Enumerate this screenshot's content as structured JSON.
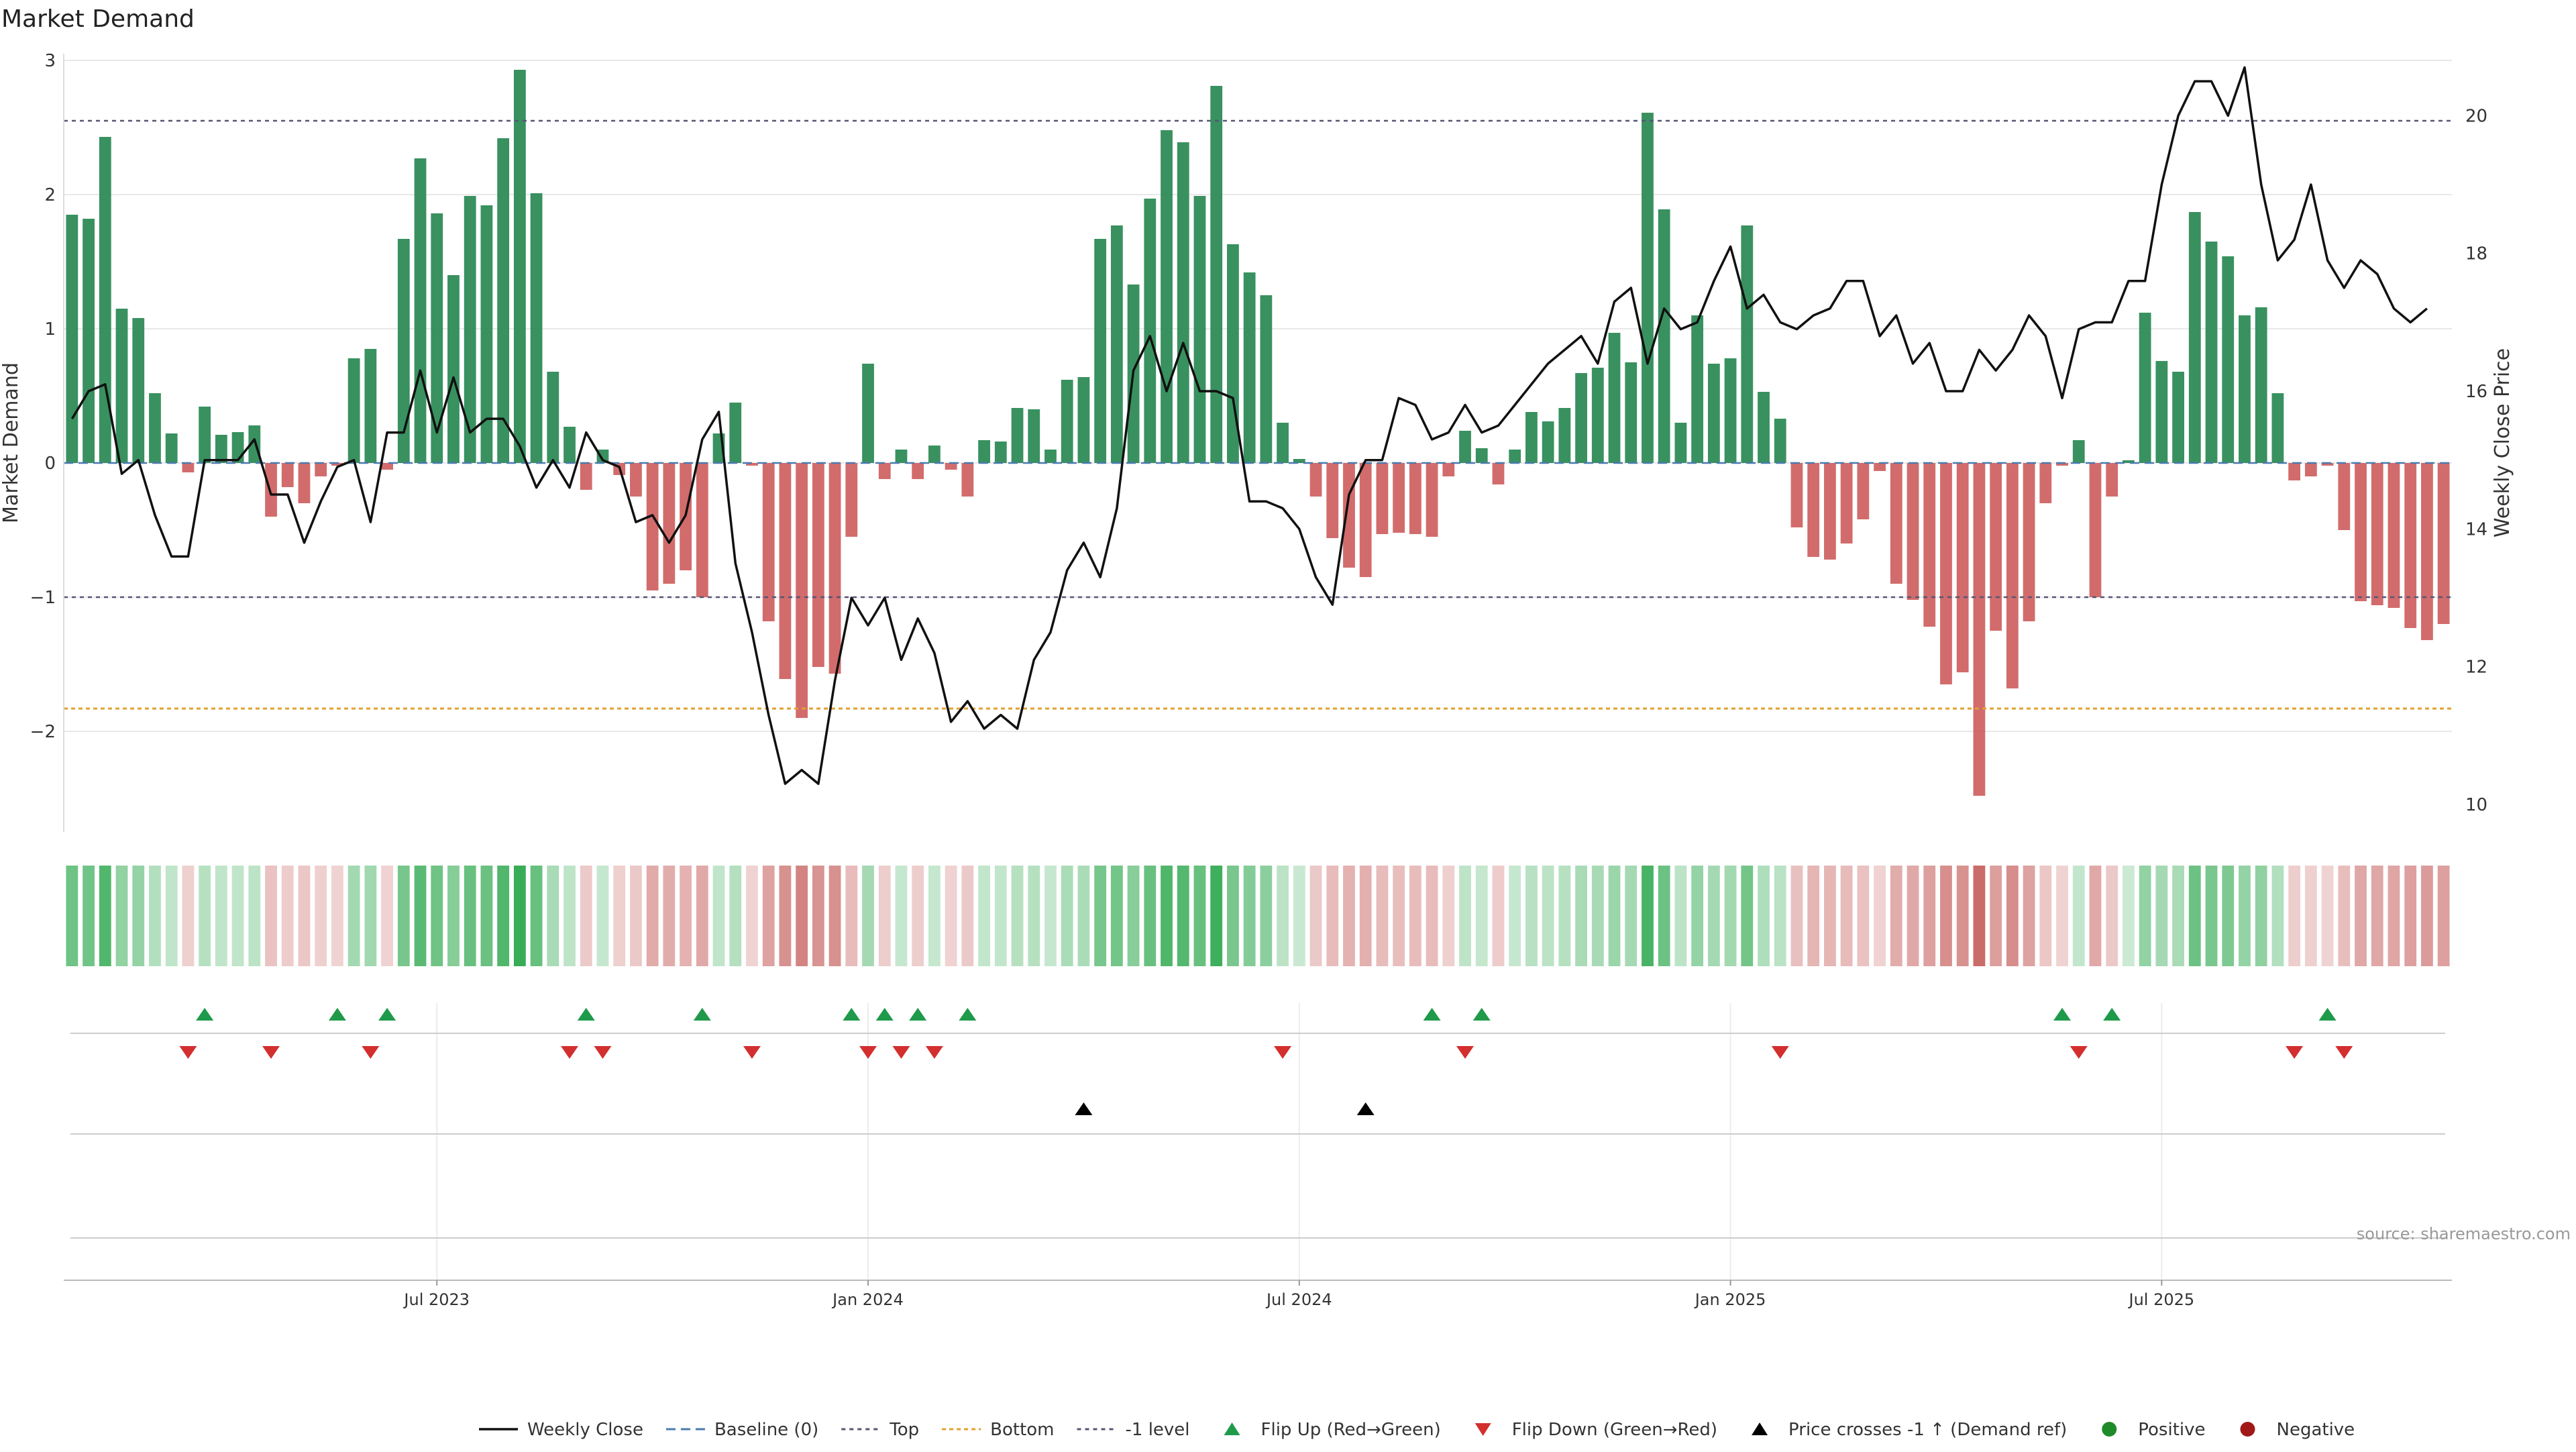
{
  "title": "Market Demand",
  "source": "source: sharemaestro.com",
  "colors": {
    "positive": "#2e8b57",
    "negative": "#cd5c5c",
    "line": "#111111",
    "ref": "#555577",
    "bottom": "#e0a030",
    "flip_up": "#1f9a4a",
    "flip_down": "#d32f2f",
    "cross": "#000000",
    "grid": "#e8e8e8"
  },
  "chart_data": {
    "type": "bar",
    "title": "Market Demand",
    "ylabel": "Market Demand",
    "y2label": "Weekly Close Price",
    "ylim": [
      -2.75,
      3.05
    ],
    "y2lim": [
      9.6,
      20.9
    ],
    "yticks": [
      {
        "value": -2,
        "label": "−2"
      },
      {
        "value": -1,
        "label": "−1"
      },
      {
        "value": 0,
        "label": "0"
      },
      {
        "value": 1,
        "label": "1"
      },
      {
        "value": 2,
        "label": "2"
      },
      {
        "value": 3,
        "label": "3"
      }
    ],
    "y2ticks": [
      10,
      12,
      14,
      16,
      18,
      20
    ],
    "xticks": [
      {
        "index": 22,
        "label": "Jul 2023"
      },
      {
        "index": 48,
        "label": "Jan 2024"
      },
      {
        "index": 74,
        "label": "Jul 2024"
      },
      {
        "index": 100,
        "label": "Jan 2025"
      },
      {
        "index": 126,
        "label": "Jul 2025"
      }
    ],
    "levels": {
      "top": 2.55,
      "bottom": -1.83,
      "minus_one": -1.0,
      "baseline": 0
    },
    "demand": [
      1.85,
      1.82,
      2.43,
      1.15,
      1.08,
      0.52,
      0.22,
      -0.07,
      0.42,
      0.21,
      0.23,
      0.28,
      -0.4,
      -0.18,
      -0.3,
      -0.1,
      -0.02,
      0.78,
      0.85,
      -0.05,
      1.67,
      2.27,
      1.86,
      1.4,
      1.99,
      1.92,
      2.42,
      2.93,
      2.01,
      0.68,
      0.27,
      -0.2,
      0.1,
      -0.09,
      -0.25,
      -0.95,
      -0.9,
      -0.8,
      -1.0,
      0.22,
      0.45,
      -0.02,
      -1.18,
      -1.61,
      -1.9,
      -1.52,
      -1.57,
      -0.55,
      0.74,
      -0.12,
      0.1,
      -0.12,
      0.13,
      -0.05,
      -0.25,
      0.17,
      0.16,
      0.41,
      0.4,
      0.1,
      0.62,
      0.64,
      1.67,
      1.77,
      1.33,
      1.97,
      2.48,
      2.39,
      1.99,
      2.81,
      1.63,
      1.42,
      1.25,
      0.3,
      0.03,
      -0.25,
      -0.56,
      -0.78,
      -0.85,
      -0.53,
      -0.52,
      -0.53,
      -0.55,
      -0.1,
      0.24,
      0.11,
      -0.16,
      0.1,
      0.38,
      0.31,
      0.41,
      0.67,
      0.71,
      0.97,
      0.75,
      2.61,
      1.89,
      0.3,
      1.1,
      0.74,
      0.78,
      1.77,
      0.53,
      0.33,
      -0.48,
      -0.7,
      -0.72,
      -0.6,
      -0.42,
      -0.06,
      -0.9,
      -1.02,
      -1.22,
      -1.65,
      -1.56,
      -2.48,
      -1.25,
      -1.68,
      -1.18,
      -0.3,
      -0.02,
      0.17,
      -1.0,
      -0.25,
      0.02,
      1.12,
      0.76,
      0.68,
      1.87,
      1.65,
      1.54,
      1.1,
      1.16,
      0.52,
      -0.13,
      -0.1,
      -0.02,
      -0.5,
      -1.03,
      -1.06,
      -1.08,
      -1.23,
      -1.32,
      -1.2
    ],
    "close": [
      15.6,
      16.0,
      16.1,
      14.8,
      15.0,
      14.2,
      13.6,
      13.6,
      15.0,
      15.0,
      15.0,
      15.3,
      14.5,
      14.5,
      13.8,
      14.4,
      14.9,
      15.0,
      14.1,
      15.4,
      15.4,
      16.3,
      15.4,
      16.2,
      15.4,
      15.6,
      15.6,
      15.2,
      14.6,
      15.0,
      14.6,
      15.4,
      15.0,
      14.9,
      14.1,
      14.2,
      13.8,
      14.2,
      15.3,
      15.7,
      13.5,
      12.5,
      11.3,
      10.3,
      10.5,
      10.3,
      11.8,
      13.0,
      12.6,
      13.0,
      12.1,
      12.7,
      12.2,
      11.2,
      11.5,
      11.1,
      11.3,
      11.1,
      12.1,
      12.5,
      13.4,
      13.8,
      13.3,
      14.3,
      16.3,
      16.8,
      16.0,
      16.7,
      16.0,
      16.0,
      15.9,
      14.4,
      14.4,
      14.3,
      14.0,
      13.3,
      12.9,
      14.5,
      15.0,
      15.0,
      15.9,
      15.8,
      15.3,
      15.4,
      15.8,
      15.4,
      15.5,
      15.8,
      16.1,
      16.4,
      16.6,
      16.8,
      16.4,
      17.3,
      17.5,
      16.4,
      17.2,
      16.9,
      17.0,
      17.6,
      18.1,
      17.2,
      17.4,
      17.0,
      16.9,
      17.1,
      17.2,
      17.6,
      17.6,
      16.8,
      17.1,
      16.4,
      16.7,
      16.0,
      16.0,
      16.6,
      16.3,
      16.6,
      17.1,
      16.8,
      15.9,
      16.9,
      17.0,
      17.0,
      17.6,
      17.6,
      19.0,
      20.0,
      20.5,
      20.5,
      20.0,
      20.7,
      19.0,
      17.9,
      18.2,
      19.0,
      17.9,
      17.5,
      17.9,
      17.7,
      17.2,
      17.0,
      17.2
    ],
    "flip_up": [
      8,
      16,
      19,
      31,
      38,
      47,
      49,
      51,
      54,
      82,
      85,
      120,
      123,
      136
    ],
    "flip_down": [
      7,
      12,
      18,
      30,
      32,
      41,
      48,
      50,
      52,
      73,
      84,
      103,
      121,
      134,
      137
    ],
    "price_crosses": [
      61,
      78
    ],
    "legend": [
      {
        "key": "weekly_close",
        "label": "Weekly Close"
      },
      {
        "key": "baseline",
        "label": "Baseline (0)"
      },
      {
        "key": "top",
        "label": "Top"
      },
      {
        "key": "bottom",
        "label": "Bottom"
      },
      {
        "key": "minus_one",
        "label": "-1 level"
      },
      {
        "key": "flip_up",
        "label": "Flip Up (Red→Green)"
      },
      {
        "key": "flip_down",
        "label": "Flip Down (Green→Red)"
      },
      {
        "key": "price_cross",
        "label": "Price crosses -1 ↑ (Demand ref)"
      },
      {
        "key": "positive",
        "label": "Positive"
      },
      {
        "key": "negative",
        "label": "Negative"
      }
    ]
  }
}
